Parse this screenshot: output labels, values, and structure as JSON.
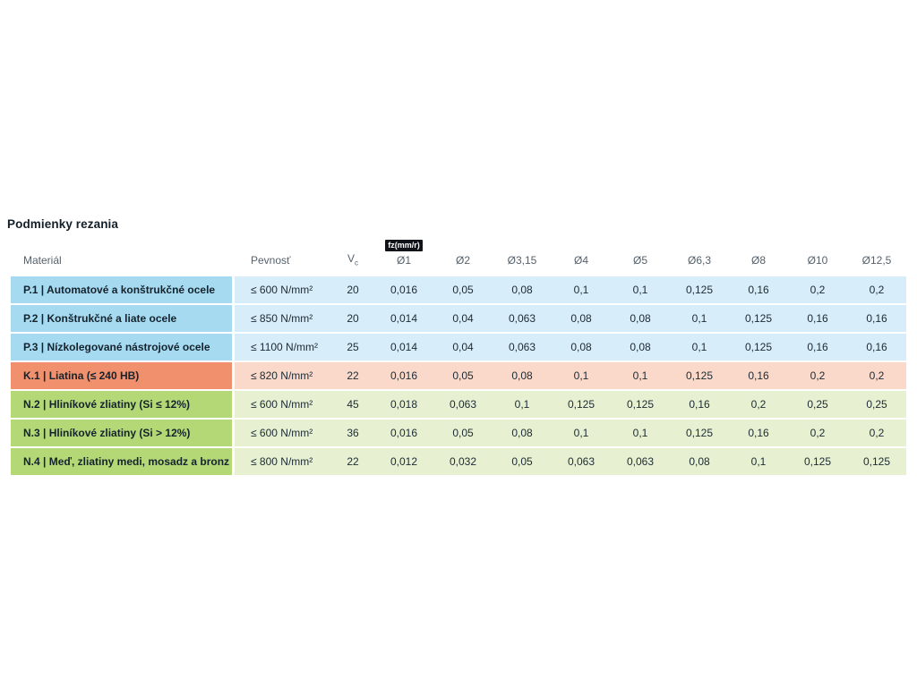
{
  "page": {
    "title": "Podmienky rezania"
  },
  "table": {
    "badge": "fz(mm/r)",
    "columns": {
      "material": "Materiál",
      "strength": "Pevnosť",
      "vc_base": "V",
      "vc_sub": "c",
      "diameters": [
        "Ø1",
        "Ø2",
        "Ø3,15",
        "Ø4",
        "Ø5",
        "Ø6,3",
        "Ø8",
        "Ø10",
        "Ø12,5"
      ]
    },
    "rows": [
      {
        "group": "steel",
        "material": "P.1 | Automatové a konštrukčné ocele",
        "strength": "≤ 600 N/mm²",
        "vc": "20",
        "fz": [
          "0,016",
          "0,05",
          "0,08",
          "0,1",
          "0,1",
          "0,125",
          "0,16",
          "0,2",
          "0,2"
        ]
      },
      {
        "group": "steel",
        "material": "P.2 | Konštrukčné a liate ocele",
        "strength": "≤ 850 N/mm²",
        "vc": "20",
        "fz": [
          "0,014",
          "0,04",
          "0,063",
          "0,08",
          "0,08",
          "0,1",
          "0,125",
          "0,16",
          "0,16"
        ]
      },
      {
        "group": "steel",
        "material": "P.3 | Nízkolegované nástrojové ocele",
        "strength": "≤ 1100 N/mm²",
        "vc": "25",
        "fz": [
          "0,014",
          "0,04",
          "0,063",
          "0,08",
          "0,08",
          "0,1",
          "0,125",
          "0,16",
          "0,16"
        ]
      },
      {
        "group": "cast_iron",
        "material": "K.1 | Liatina (≤ 240 HB)",
        "strength": "≤ 820 N/mm²",
        "vc": "22",
        "fz": [
          "0,016",
          "0,05",
          "0,08",
          "0,1",
          "0,1",
          "0,125",
          "0,16",
          "0,2",
          "0,2"
        ]
      },
      {
        "group": "nonferrous",
        "material": "N.2 | Hliníkové zliatiny (Si ≤ 12%)",
        "strength": "≤ 600 N/mm²",
        "vc": "45",
        "fz": [
          "0,018",
          "0,063",
          "0,1",
          "0,125",
          "0,125",
          "0,16",
          "0,2",
          "0,25",
          "0,25"
        ]
      },
      {
        "group": "nonferrous",
        "material": "N.3 | Hliníkové zliatiny (Si > 12%)",
        "strength": "≤ 600 N/mm²",
        "vc": "36",
        "fz": [
          "0,016",
          "0,05",
          "0,08",
          "0,1",
          "0,1",
          "0,125",
          "0,16",
          "0,2",
          "0,2"
        ]
      },
      {
        "group": "nonferrous",
        "material": "N.4 | Meď, zliatiny medi, mosadz a bronz",
        "strength": "≤ 800 N/mm²",
        "vc": "22",
        "fz": [
          "0,012",
          "0,032",
          "0,05",
          "0,063",
          "0,063",
          "0,08",
          "0,1",
          "0,125",
          "0,125"
        ]
      }
    ]
  },
  "colors": {
    "steel": {
      "label": "#A5DAF1",
      "row": "#D7EDF9"
    },
    "cast_iron": {
      "label": "#F0906C",
      "row": "#FAD9CA"
    },
    "nonferrous": {
      "label": "#B5D877",
      "row": "#E8F0D2"
    },
    "badge_bg": "#101418",
    "badge_text": "#FFFFFF",
    "header_text": "#55616C",
    "body_text": "#1C2A33"
  }
}
